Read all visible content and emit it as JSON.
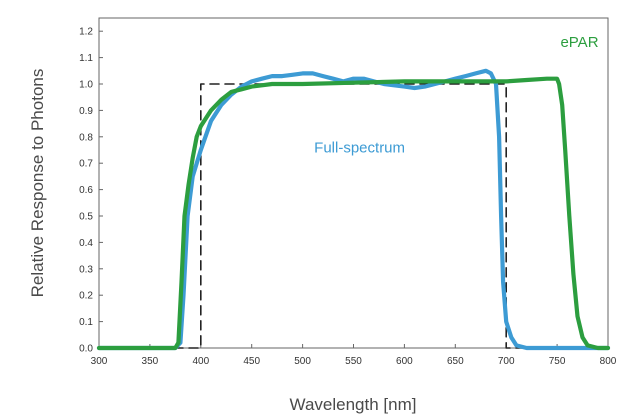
{
  "chart_data": {
    "type": "line",
    "title": "",
    "xlabel": "Wavelength [nm]",
    "ylabel": "Relative Response to Photons",
    "xlim": [
      300,
      800
    ],
    "ylim": [
      0.0,
      1.25
    ],
    "xticks": [
      300,
      350,
      400,
      450,
      500,
      550,
      600,
      650,
      700,
      750,
      800
    ],
    "xtick_labels": [
      "300",
      "350",
      "400",
      "450",
      "500",
      "550",
      "600",
      "650",
      "700",
      "750",
      "800"
    ],
    "yticks": [
      0.0,
      0.1,
      0.2,
      0.3,
      0.4,
      0.5,
      0.6,
      0.7,
      0.8,
      0.9,
      1.0,
      1.1,
      1.2
    ],
    "ytick_labels": [
      "0.0",
      "0.1",
      "0.2",
      "0.3",
      "0.4",
      "0.5",
      "0.6",
      "0.7",
      "0.8",
      "0.9",
      "1.0",
      "1.1",
      "1.2"
    ],
    "grid": false,
    "series": [
      {
        "name": "Full-spectrum",
        "color": "#3d9bd4",
        "x": [
          300,
          375,
          380,
          383,
          387,
          392,
          400,
          410,
          420,
          430,
          440,
          450,
          460,
          470,
          480,
          490,
          500,
          510,
          520,
          530,
          540,
          550,
          560,
          570,
          580,
          590,
          600,
          610,
          620,
          630,
          640,
          650,
          660,
          670,
          680,
          685,
          690,
          693,
          695,
          697,
          700,
          705,
          710,
          720,
          730,
          740,
          800
        ],
        "y": [
          0.0,
          0.0,
          0.02,
          0.2,
          0.5,
          0.65,
          0.75,
          0.86,
          0.92,
          0.96,
          0.99,
          1.01,
          1.02,
          1.03,
          1.03,
          1.035,
          1.04,
          1.04,
          1.03,
          1.02,
          1.01,
          1.02,
          1.02,
          1.01,
          1.0,
          0.995,
          0.99,
          0.985,
          0.99,
          1.0,
          1.01,
          1.02,
          1.03,
          1.04,
          1.05,
          1.04,
          1.0,
          0.8,
          0.5,
          0.25,
          0.1,
          0.04,
          0.01,
          0.0,
          0.0,
          0.0,
          0.0
        ]
      },
      {
        "name": "ePAR",
        "color": "#2c9e3f",
        "x": [
          300,
          375,
          378,
          381,
          384,
          388,
          392,
          396,
          400,
          410,
          420,
          430,
          440,
          450,
          470,
          500,
          550,
          600,
          650,
          700,
          720,
          740,
          745,
          750,
          752,
          755,
          758,
          762,
          766,
          770,
          775,
          780,
          790,
          800
        ],
        "y": [
          0.0,
          0.0,
          0.02,
          0.25,
          0.5,
          0.62,
          0.72,
          0.8,
          0.84,
          0.9,
          0.94,
          0.97,
          0.98,
          0.99,
          1.0,
          1.0,
          1.005,
          1.01,
          1.01,
          1.01,
          1.015,
          1.02,
          1.02,
          1.02,
          1.0,
          0.92,
          0.75,
          0.5,
          0.28,
          0.12,
          0.04,
          0.01,
          0.0,
          0.0
        ]
      },
      {
        "name": "",
        "color": "#222222",
        "dash": true,
        "x": [
          300,
          400,
          400,
          700,
          700,
          800
        ],
        "y": [
          0.0,
          0.0,
          1.0,
          1.0,
          0.0,
          0.0
        ]
      }
    ],
    "annotations": [
      {
        "text": "ePAR",
        "x": 772,
        "y": 1.14,
        "color": "#2c9e3f"
      },
      {
        "text": "Full-spectrum",
        "x": 556,
        "y": 0.74,
        "color": "#3d9bd4"
      }
    ]
  }
}
